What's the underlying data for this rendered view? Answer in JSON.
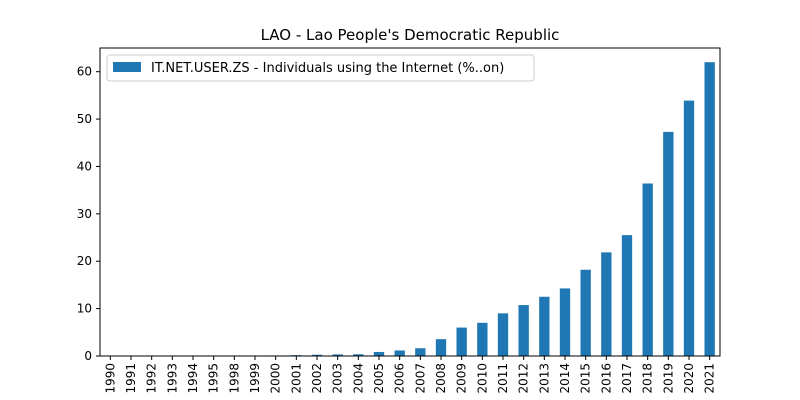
{
  "chart_data": {
    "type": "bar",
    "title": "LAO - Lao People's Democratic Republic",
    "xlabel": "",
    "ylabel": "",
    "ylim": [
      0,
      65
    ],
    "yticks": [
      0,
      10,
      20,
      30,
      40,
      50,
      60
    ],
    "grid": false,
    "legend_placement": "top-left",
    "bar_color": "#1f77b4",
    "categories": [
      "1990",
      "1991",
      "1992",
      "1993",
      "1994",
      "1995",
      "1998",
      "1999",
      "2000",
      "2001",
      "2002",
      "2003",
      "2004",
      "2005",
      "2006",
      "2007",
      "2008",
      "2009",
      "2010",
      "2011",
      "2012",
      "2013",
      "2014",
      "2015",
      "2016",
      "2017",
      "2018",
      "2019",
      "2020",
      "2021"
    ],
    "series": [
      {
        "name": "IT.NET.USER.ZS - Individuals using the Internet (%..on)",
        "values": [
          0,
          0,
          0,
          0,
          0,
          0,
          0.02,
          0.05,
          0.11,
          0.18,
          0.27,
          0.33,
          0.36,
          0.85,
          1.17,
          1.64,
          3.55,
          6.0,
          7.0,
          9.0,
          10.75,
          12.5,
          14.26,
          18.2,
          21.87,
          25.51,
          36.4,
          47.3,
          53.9,
          62.0
        ]
      }
    ]
  }
}
